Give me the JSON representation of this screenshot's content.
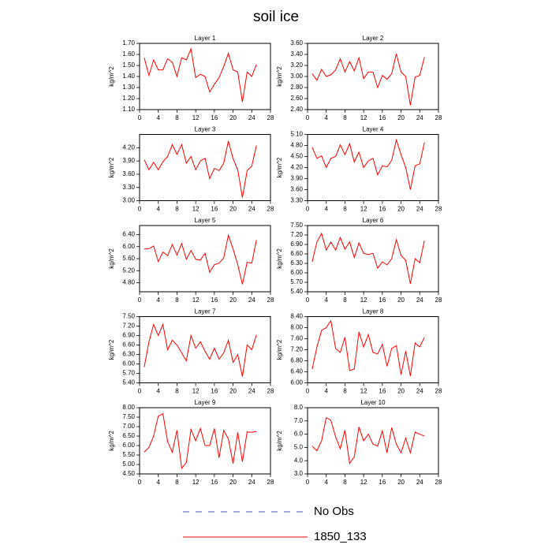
{
  "title": "soil ice",
  "legend": [
    {
      "name": "No Obs",
      "color": "#5050c8",
      "dash": "8,8"
    },
    {
      "name": "1850_133",
      "color": "#ff0000"
    }
  ],
  "chart_data": [
    {
      "type": "line",
      "title": "Layer 1",
      "y_label": "kg/m^2",
      "x": [
        1,
        2,
        3,
        4,
        5,
        6,
        7,
        8,
        9,
        10,
        11,
        12,
        13,
        14,
        15,
        16,
        17,
        18,
        19,
        20,
        21,
        22,
        23,
        24,
        25
      ],
      "xlim": [
        0,
        28
      ],
      "xticks": [
        0,
        4,
        8,
        12,
        16,
        20,
        24,
        28
      ],
      "ylim": [
        1.1,
        1.7
      ],
      "yticks": [
        {
          "value": 1.1,
          "label": "1.10"
        },
        {
          "value": 1.2,
          "label": "1.20"
        },
        {
          "value": 1.3,
          "label": "1.30"
        },
        {
          "value": 1.4,
          "label": "1.40"
        },
        {
          "value": 1.5,
          "label": "1.50"
        },
        {
          "value": 1.6,
          "label": "1.60"
        },
        {
          "value": 1.7,
          "label": "1.70"
        }
      ],
      "series": [
        {
          "color": "#ff0000",
          "values": [
            1.57,
            1.41,
            1.55,
            1.46,
            1.46,
            1.56,
            1.53,
            1.4,
            1.57,
            1.55,
            1.65,
            1.39,
            1.42,
            1.4,
            1.26,
            1.33,
            1.39,
            1.49,
            1.61,
            1.46,
            1.44,
            1.17,
            1.44,
            1.4,
            1.51
          ]
        }
      ]
    },
    {
      "type": "line",
      "title": "Layer 2",
      "y_label": "kg/m^2",
      "x": [
        1,
        2,
        3,
        4,
        5,
        6,
        7,
        8,
        9,
        10,
        11,
        12,
        13,
        14,
        15,
        16,
        17,
        18,
        19,
        20,
        21,
        22,
        23,
        24,
        25
      ],
      "xlim": [
        0,
        28
      ],
      "xticks": [
        0,
        4,
        8,
        12,
        16,
        20,
        24,
        28
      ],
      "ylim": [
        2.4,
        3.6
      ],
      "yticks": [
        {
          "value": 2.4,
          "label": "2.40"
        },
        {
          "value": 2.6,
          "label": "2.60"
        },
        {
          "value": 2.8,
          "label": "2.80"
        },
        {
          "value": 3.0,
          "label": "3.00"
        },
        {
          "value": 3.2,
          "label": "3.20"
        },
        {
          "value": 3.4,
          "label": "3.40"
        },
        {
          "value": 3.6,
          "label": "3.60"
        }
      ],
      "series": [
        {
          "color": "#ff0000",
          "values": [
            3.05,
            2.93,
            3.13,
            3.0,
            3.03,
            3.12,
            3.32,
            3.08,
            3.27,
            3.1,
            3.34,
            2.96,
            3.08,
            3.08,
            2.8,
            3.02,
            2.95,
            3.05,
            3.41,
            3.08,
            3.0,
            2.48,
            2.99,
            3.02,
            3.35
          ]
        }
      ]
    },
    {
      "type": "line",
      "title": "Layer 3",
      "y_label": "kg/m^2",
      "x": [
        1,
        2,
        3,
        4,
        5,
        6,
        7,
        8,
        9,
        10,
        11,
        12,
        13,
        14,
        15,
        16,
        17,
        18,
        19,
        20,
        21,
        22,
        23,
        24,
        25
      ],
      "xlim": [
        0,
        28
      ],
      "xticks": [
        0,
        4,
        8,
        12,
        16,
        20,
        24,
        28
      ],
      "ylim": [
        3.0,
        4.5
      ],
      "yticks": [
        {
          "value": 3.0,
          "label": "3.00"
        },
        {
          "value": 3.3,
          "label": "3.30"
        },
        {
          "value": 3.6,
          "label": "3.60"
        },
        {
          "value": 3.9,
          "label": "3.90"
        },
        {
          "value": 4.2,
          "label": "4.20"
        }
      ],
      "series": [
        {
          "color": "#ff0000",
          "values": [
            3.93,
            3.7,
            3.87,
            3.7,
            3.88,
            4.0,
            4.27,
            4.05,
            4.27,
            3.85,
            4.0,
            3.7,
            3.9,
            3.96,
            3.5,
            3.73,
            3.68,
            3.85,
            4.35,
            3.95,
            3.7,
            3.07,
            3.68,
            3.78,
            4.25
          ]
        }
      ]
    },
    {
      "type": "line",
      "title": "Layer 4",
      "y_label": "kg/m^2",
      "x": [
        1,
        2,
        3,
        4,
        5,
        6,
        7,
        8,
        9,
        10,
        11,
        12,
        13,
        14,
        15,
        16,
        17,
        18,
        19,
        20,
        21,
        22,
        23,
        24,
        25
      ],
      "xlim": [
        0,
        28
      ],
      "xticks": [
        0,
        4,
        8,
        12,
        16,
        20,
        24,
        28
      ],
      "ylim": [
        3.3,
        5.1
      ],
      "yticks": [
        {
          "value": 3.3,
          "label": "3.30"
        },
        {
          "value": 3.6,
          "label": "3.60"
        },
        {
          "value": 3.9,
          "label": "3.90"
        },
        {
          "value": 4.2,
          "label": "4.20"
        },
        {
          "value": 4.5,
          "label": "4.50"
        },
        {
          "value": 4.8,
          "label": "4.80"
        },
        {
          "value": 5.1,
          "label": "5.10"
        }
      ],
      "series": [
        {
          "color": "#ff0000",
          "values": [
            4.75,
            4.45,
            4.52,
            4.2,
            4.45,
            4.5,
            4.82,
            4.55,
            4.85,
            4.35,
            4.62,
            4.2,
            4.38,
            4.45,
            4.0,
            4.25,
            4.22,
            4.4,
            4.95,
            4.55,
            4.2,
            3.6,
            4.25,
            4.3,
            4.88
          ]
        }
      ]
    },
    {
      "type": "line",
      "title": "Layer 5",
      "y_label": "kg/m^2",
      "x": [
        1,
        2,
        3,
        4,
        5,
        6,
        7,
        8,
        9,
        10,
        11,
        12,
        13,
        14,
        15,
        16,
        17,
        18,
        19,
        20,
        21,
        22,
        23,
        24,
        25
      ],
      "xlim": [
        0,
        28
      ],
      "xticks": [
        0,
        4,
        8,
        12,
        16,
        20,
        24,
        28
      ],
      "ylim": [
        4.5,
        6.7
      ],
      "yticks": [
        {
          "value": 4.8,
          "label": "4.80"
        },
        {
          "value": 5.2,
          "label": "5.20"
        },
        {
          "value": 5.6,
          "label": "5.60"
        },
        {
          "value": 6.0,
          "label": "6.00"
        },
        {
          "value": 6.4,
          "label": "6.40"
        }
      ],
      "series": [
        {
          "color": "#ff0000",
          "values": [
            5.92,
            5.93,
            6.02,
            5.5,
            5.82,
            5.7,
            6.07,
            5.72,
            6.1,
            5.58,
            5.87,
            5.58,
            5.55,
            5.78,
            5.15,
            5.4,
            5.45,
            5.62,
            6.38,
            5.92,
            5.4,
            4.75,
            5.48,
            5.45,
            6.22
          ]
        }
      ]
    },
    {
      "type": "line",
      "title": "Layer 6",
      "y_label": "kg/m^2",
      "x": [
        1,
        2,
        3,
        4,
        5,
        6,
        7,
        8,
        9,
        10,
        11,
        12,
        13,
        14,
        15,
        16,
        17,
        18,
        19,
        20,
        21,
        22,
        23,
        24,
        25
      ],
      "xlim": [
        0,
        28
      ],
      "xticks": [
        0,
        4,
        8,
        12,
        16,
        20,
        24,
        28
      ],
      "ylim": [
        5.4,
        7.5
      ],
      "yticks": [
        {
          "value": 5.4,
          "label": "5.40"
        },
        {
          "value": 5.7,
          "label": "5.70"
        },
        {
          "value": 6.0,
          "label": "6.00"
        },
        {
          "value": 6.3,
          "label": "6.30"
        },
        {
          "value": 6.6,
          "label": "6.60"
        },
        {
          "value": 6.9,
          "label": "6.90"
        },
        {
          "value": 7.2,
          "label": "7.20"
        },
        {
          "value": 7.5,
          "label": "7.50"
        }
      ],
      "series": [
        {
          "color": "#ff0000",
          "values": [
            6.35,
            6.98,
            7.25,
            6.72,
            6.98,
            6.72,
            7.12,
            6.75,
            6.98,
            6.48,
            6.95,
            6.62,
            6.58,
            6.62,
            6.15,
            6.35,
            6.25,
            6.45,
            7.05,
            6.55,
            6.4,
            5.65,
            6.45,
            6.32,
            7.02
          ]
        }
      ]
    },
    {
      "type": "line",
      "title": "Layer 7",
      "y_label": "kg/m^2",
      "x": [
        1,
        2,
        3,
        4,
        5,
        6,
        7,
        8,
        9,
        10,
        11,
        12,
        13,
        14,
        15,
        16,
        17,
        18,
        19,
        20,
        21,
        22,
        23,
        24,
        25
      ],
      "xlim": [
        0,
        28
      ],
      "xticks": [
        0,
        4,
        8,
        12,
        16,
        20,
        24,
        28
      ],
      "ylim": [
        5.4,
        7.5
      ],
      "yticks": [
        {
          "value": 5.4,
          "label": "5.40"
        },
        {
          "value": 5.7,
          "label": "5.70"
        },
        {
          "value": 6.0,
          "label": "6.00"
        },
        {
          "value": 6.3,
          "label": "6.30"
        },
        {
          "value": 6.6,
          "label": "6.60"
        },
        {
          "value": 6.9,
          "label": "6.90"
        },
        {
          "value": 7.2,
          "label": "7.20"
        },
        {
          "value": 7.5,
          "label": "7.50"
        }
      ],
      "series": [
        {
          "color": "#ff0000",
          "values": [
            5.9,
            6.7,
            7.25,
            6.9,
            7.25,
            6.45,
            6.75,
            6.6,
            6.35,
            6.1,
            6.9,
            6.5,
            6.7,
            6.4,
            6.15,
            6.5,
            6.15,
            6.35,
            6.75,
            6.05,
            6.3,
            5.6,
            6.6,
            6.45,
            6.92
          ]
        }
      ]
    },
    {
      "type": "line",
      "title": "Layer 8",
      "y_label": "kg/m^2",
      "x": [
        1,
        2,
        3,
        4,
        5,
        6,
        7,
        8,
        9,
        10,
        11,
        12,
        13,
        14,
        15,
        16,
        17,
        18,
        19,
        20,
        21,
        22,
        23,
        24,
        25
      ],
      "xlim": [
        0,
        28
      ],
      "xticks": [
        0,
        4,
        8,
        12,
        16,
        20,
        24,
        28
      ],
      "ylim": [
        6.0,
        8.4
      ],
      "yticks": [
        {
          "value": 6.0,
          "label": "6.00"
        },
        {
          "value": 6.4,
          "label": "6.40"
        },
        {
          "value": 6.8,
          "label": "6.80"
        },
        {
          "value": 7.2,
          "label": "7.20"
        },
        {
          "value": 7.6,
          "label": "7.60"
        },
        {
          "value": 8.0,
          "label": "8.00"
        },
        {
          "value": 8.4,
          "label": "8.40"
        }
      ],
      "series": [
        {
          "color": "#ff0000",
          "values": [
            6.5,
            7.3,
            7.9,
            8.0,
            8.25,
            7.25,
            7.1,
            7.65,
            6.45,
            6.5,
            7.85,
            7.3,
            7.75,
            7.1,
            7.05,
            7.4,
            6.6,
            7.25,
            7.35,
            6.3,
            7.15,
            6.25,
            7.45,
            7.3,
            7.65
          ]
        }
      ]
    },
    {
      "type": "line",
      "title": "Layer 9",
      "y_label": "kg/m^2",
      "x": [
        1,
        2,
        3,
        4,
        5,
        6,
        7,
        8,
        9,
        10,
        11,
        12,
        13,
        14,
        15,
        16,
        17,
        18,
        19,
        20,
        21,
        22,
        23,
        24,
        25
      ],
      "xlim": [
        0,
        28
      ],
      "xticks": [
        0,
        4,
        8,
        12,
        16,
        20,
        24,
        28
      ],
      "ylim": [
        4.5,
        8.0
      ],
      "yticks": [
        {
          "value": 4.5,
          "label": "4.50"
        },
        {
          "value": 5.0,
          "label": "5.00"
        },
        {
          "value": 5.5,
          "label": "5.50"
        },
        {
          "value": 6.0,
          "label": "6.00"
        },
        {
          "value": 6.5,
          "label": "6.50"
        },
        {
          "value": 7.0,
          "label": "7.00"
        },
        {
          "value": 7.5,
          "label": "7.50"
        },
        {
          "value": 8.0,
          "label": "8.00"
        }
      ],
      "series": [
        {
          "color": "#ff0000",
          "values": [
            5.65,
            5.9,
            6.5,
            7.55,
            7.68,
            6.2,
            5.65,
            6.8,
            4.8,
            5.1,
            6.85,
            6.25,
            6.9,
            6.0,
            6.0,
            6.9,
            5.35,
            6.8,
            6.35,
            5.05,
            6.7,
            5.15,
            6.72,
            6.7,
            6.75
          ]
        }
      ]
    },
    {
      "type": "line",
      "title": "Layer 10",
      "y_label": "kg/m^2",
      "x": [
        1,
        2,
        3,
        4,
        5,
        6,
        7,
        8,
        9,
        10,
        11,
        12,
        13,
        14,
        15,
        16,
        17,
        18,
        19,
        20,
        21,
        22,
        23,
        24,
        25
      ],
      "xlim": [
        0,
        28
      ],
      "xticks": [
        0,
        4,
        8,
        12,
        16,
        20,
        24,
        28
      ],
      "ylim": [
        3.0,
        8.0
      ],
      "yticks": [
        {
          "value": 3,
          "label": "3.0"
        },
        {
          "value": 4,
          "label": "4.0"
        },
        {
          "value": 5,
          "label": "5.0"
        },
        {
          "value": 6,
          "label": "6.0"
        },
        {
          "value": 7,
          "label": "7.0"
        },
        {
          "value": 8,
          "label": "8.0"
        }
      ],
      "series": [
        {
          "color": "#ff0000",
          "values": [
            5.1,
            4.75,
            5.5,
            7.25,
            7.05,
            5.8,
            4.9,
            6.3,
            3.8,
            4.3,
            6.55,
            5.5,
            6.0,
            5.25,
            5.1,
            6.25,
            4.6,
            6.5,
            5.25,
            4.6,
            5.7,
            4.6,
            6.15,
            6.0,
            5.85
          ]
        }
      ]
    }
  ]
}
